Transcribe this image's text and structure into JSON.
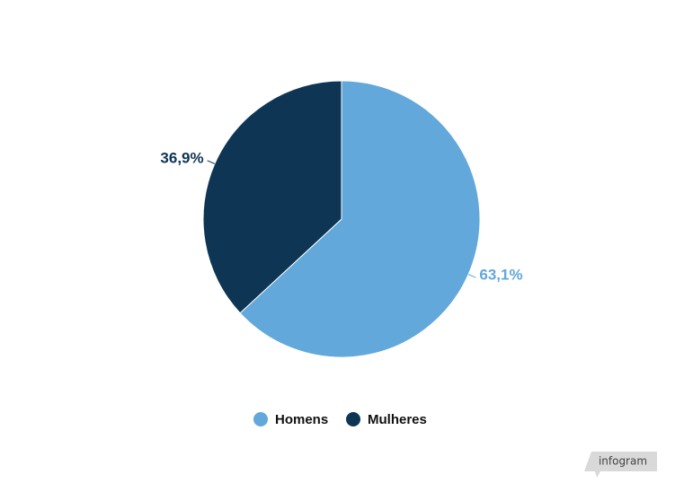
{
  "chart_data": {
    "type": "pie",
    "categories": [
      "Homens",
      "Mulheres"
    ],
    "values": [
      63.1,
      36.9
    ],
    "value_labels": [
      "63,1%",
      "36,9%"
    ],
    "colors": [
      "#62a8da",
      "#0e3553"
    ],
    "legend": "bottom"
  },
  "watermark": "infogram"
}
